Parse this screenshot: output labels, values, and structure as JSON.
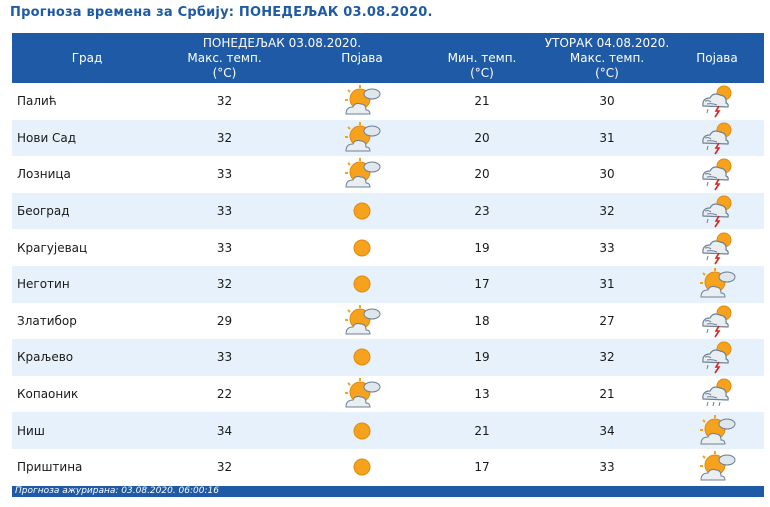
{
  "title": "Прогноза времена за Србију: ПОНЕДЕЉАК  03.08.2020.",
  "header": {
    "city": "Град",
    "day1": "ПОНЕДЕЉАК  03.08.2020.",
    "day2": "УТОРАК  04.08.2020.",
    "max_temp": "Макс. темп.",
    "min_temp": "Мин. темп.",
    "unit": "(°C)",
    "phenomenon": "Појава"
  },
  "rows": [
    {
      "city": "Палић",
      "max1": "32",
      "icon1": "partly-cloudy-icon",
      "min2": "21",
      "max2": "30",
      "icon2": "thunderstorm-icon"
    },
    {
      "city": "Нови Сад",
      "max1": "32",
      "icon1": "partly-cloudy-icon",
      "min2": "20",
      "max2": "31",
      "icon2": "thunderstorm-icon"
    },
    {
      "city": "Лозница",
      "max1": "33",
      "icon1": "partly-cloudy-icon",
      "min2": "20",
      "max2": "30",
      "icon2": "thunderstorm-icon"
    },
    {
      "city": "Београд",
      "max1": "33",
      "icon1": "sun-icon",
      "min2": "23",
      "max2": "32",
      "icon2": "thunderstorm-icon"
    },
    {
      "city": "Крагујевац",
      "max1": "33",
      "icon1": "sun-icon",
      "min2": "19",
      "max2": "33",
      "icon2": "thunderstorm-icon"
    },
    {
      "city": "Неготин",
      "max1": "32",
      "icon1": "sun-icon",
      "min2": "17",
      "max2": "31",
      "icon2": "partly-cloudy-icon"
    },
    {
      "city": "Златибор",
      "max1": "29",
      "icon1": "partly-cloudy-icon",
      "min2": "18",
      "max2": "27",
      "icon2": "thunderstorm-icon"
    },
    {
      "city": "Краљево",
      "max1": "33",
      "icon1": "sun-icon",
      "min2": "19",
      "max2": "32",
      "icon2": "thunderstorm-icon"
    },
    {
      "city": "Копаоник",
      "max1": "22",
      "icon1": "partly-cloudy-icon",
      "min2": "13",
      "max2": "21",
      "icon2": "rain-shower-icon"
    },
    {
      "city": "Ниш",
      "max1": "34",
      "icon1": "sun-icon",
      "min2": "21",
      "max2": "34",
      "icon2": "partly-cloudy-icon"
    },
    {
      "city": "Приштина",
      "max1": "32",
      "icon1": "sun-icon",
      "min2": "17",
      "max2": "33",
      "icon2": "partly-cloudy-icon"
    }
  ],
  "footer": "Прогноза ажурирана:  03.08.2020. 06:00:16",
  "colors": {
    "header_bg": "#1f5aa6",
    "row_alt": "#e6f1fb",
    "sun": "#f7a21c",
    "cloud": "#8aa0b4"
  }
}
